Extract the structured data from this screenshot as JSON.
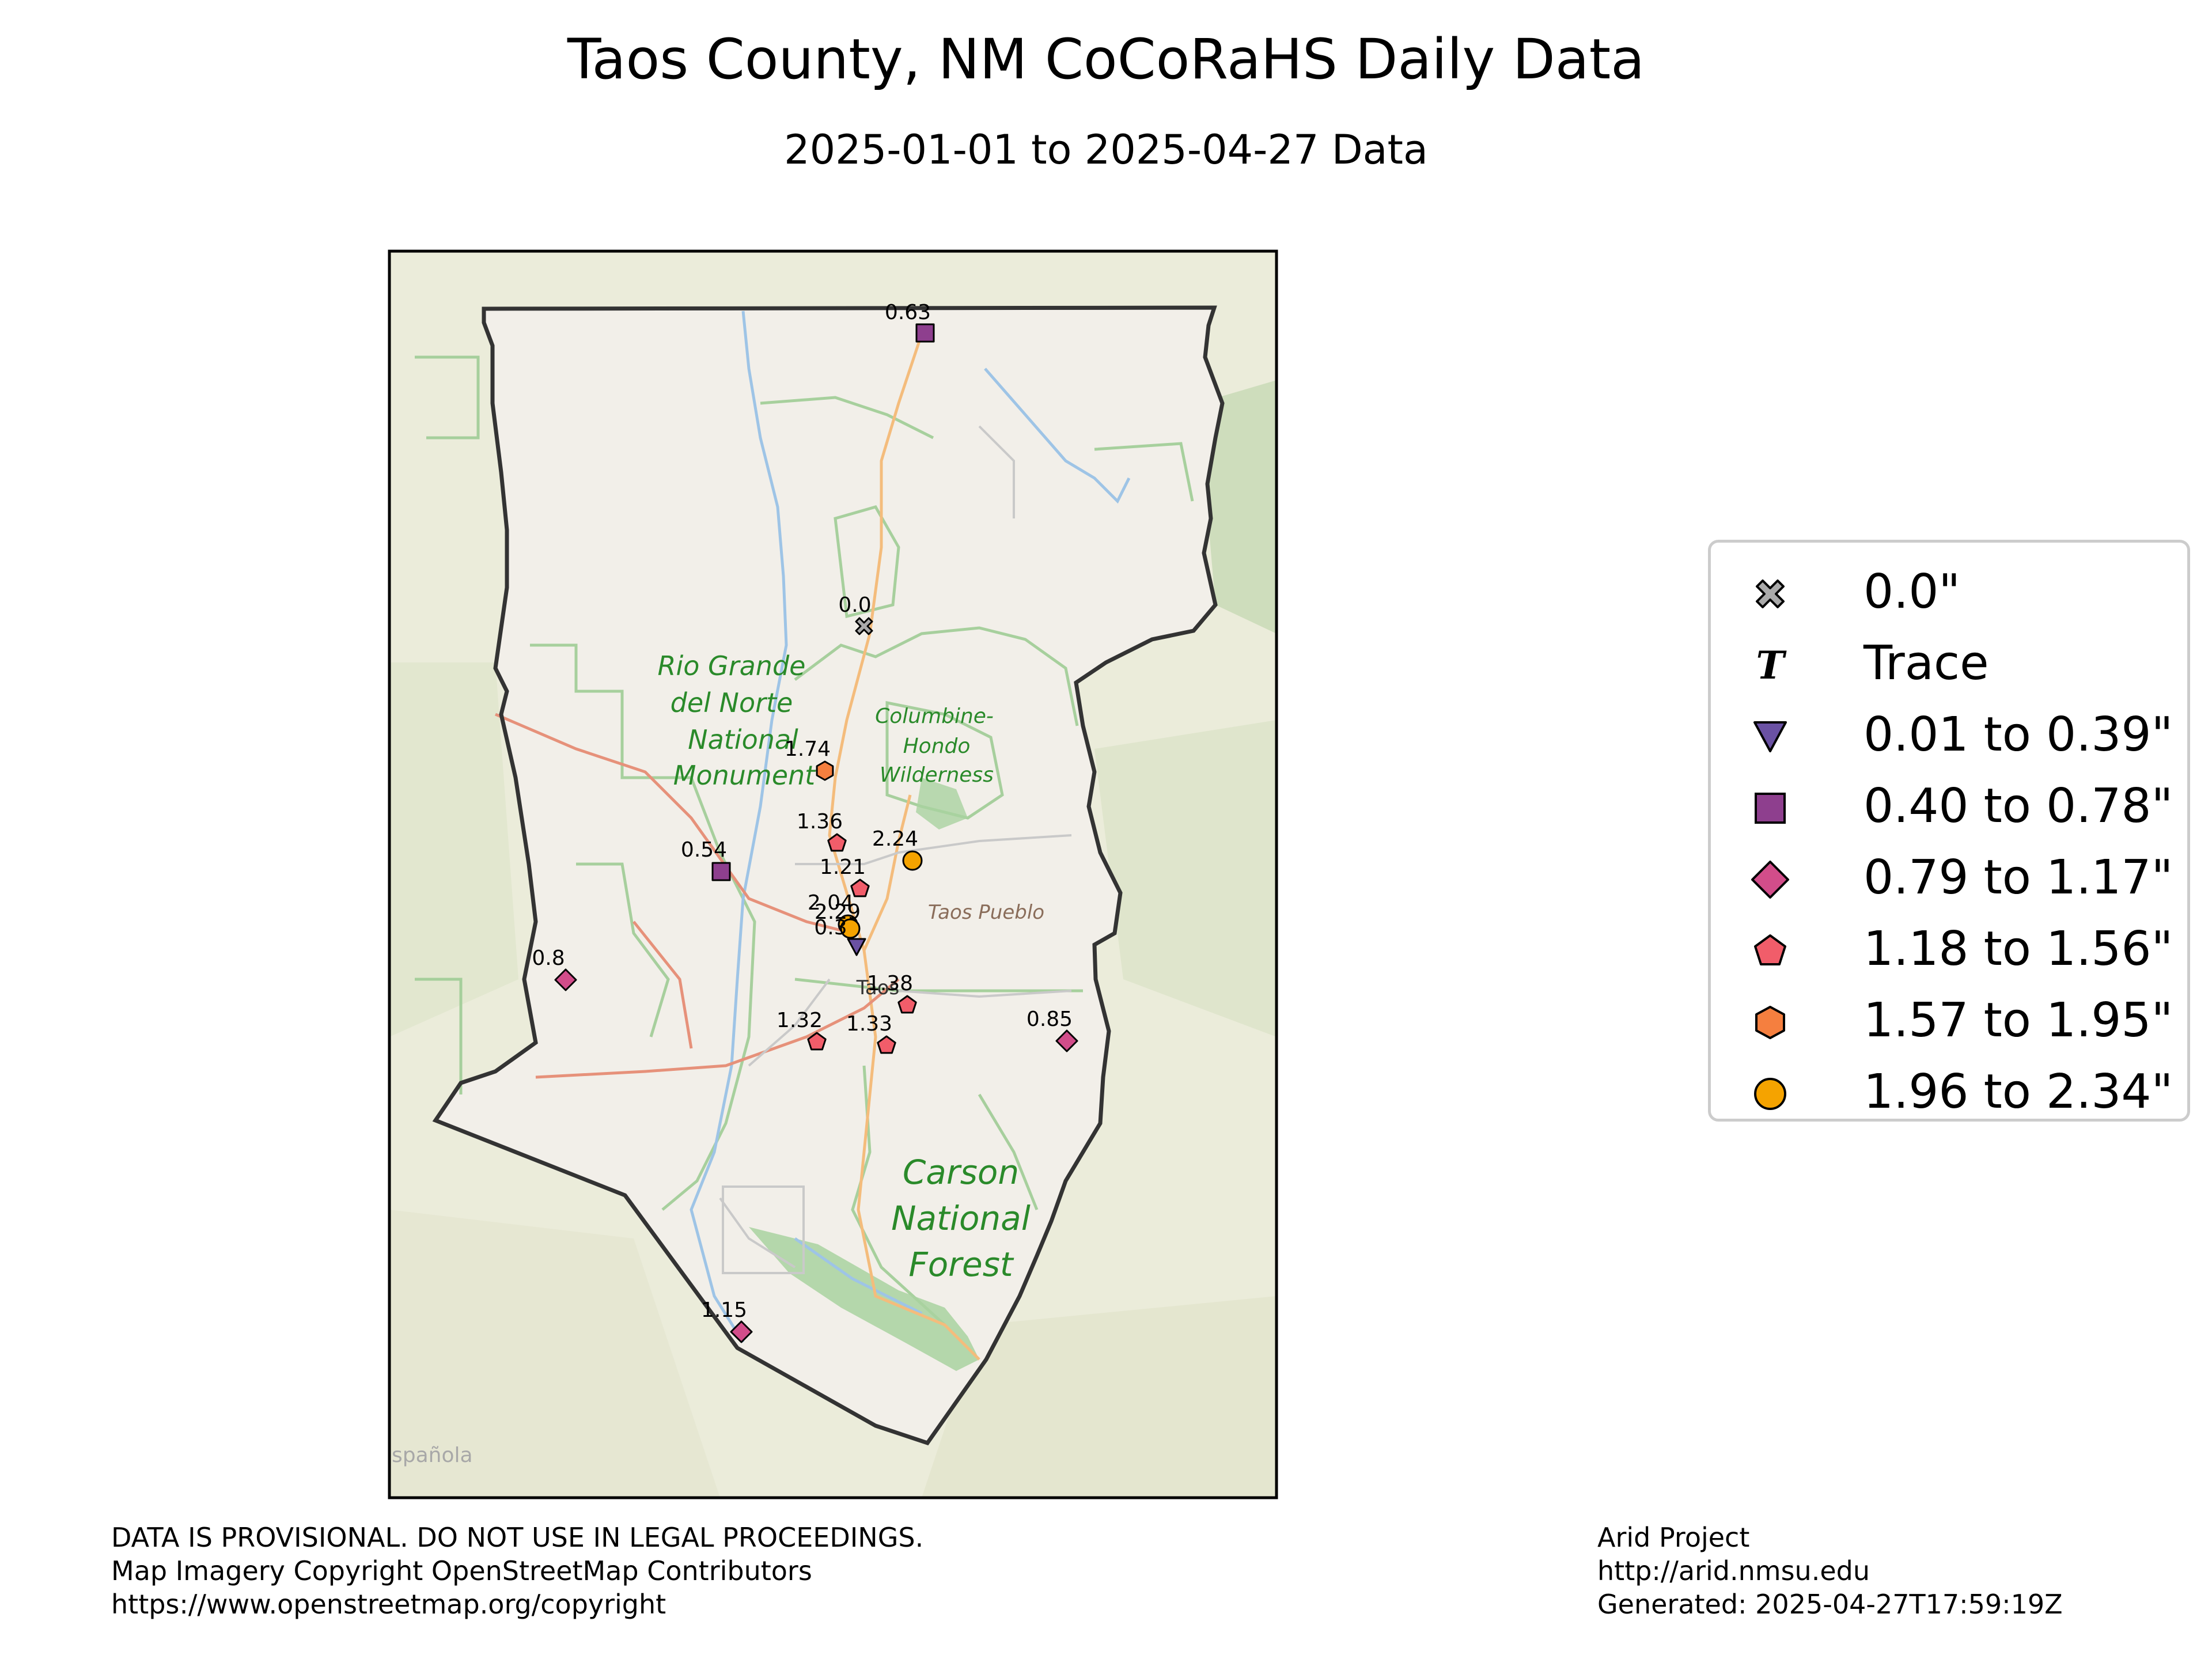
{
  "title": "Taos County, NM CoCoRaHS Daily Data",
  "subtitle": "2025-01-01 to 2025-04-27 Data",
  "map_labels": {
    "rio_grande_l1": "Rio Grande",
    "rio_grande_l2": "del Norte",
    "rio_grande_l3": "National",
    "rio_grande_l4": "Monument",
    "columbine_l1": "Columbine-",
    "columbine_l2": "Hondo",
    "columbine_l3": "Wilderness",
    "taos_pueblo": "Taos Pueblo",
    "taos": "Taos",
    "carson_l1": "Carson",
    "carson_l2": "National",
    "carson_l3": "Forest",
    "espanola": "spañola"
  },
  "stations": [
    {
      "label": "0.63",
      "value": 0.63,
      "category": "0.40 to 0.78\""
    },
    {
      "label": "0.0",
      "value": 0.0,
      "category": "0.0\""
    },
    {
      "label": "1.74",
      "value": 1.74,
      "category": "1.57 to 1.95\""
    },
    {
      "label": "1.36",
      "value": 1.36,
      "category": "1.18 to 1.56\""
    },
    {
      "label": "2.24",
      "value": 2.24,
      "category": "1.96 to 2.34\""
    },
    {
      "label": "0.54",
      "value": 0.54,
      "category": "0.40 to 0.78\""
    },
    {
      "label": "1.21",
      "value": 1.21,
      "category": "1.18 to 1.56\""
    },
    {
      "label": "2.04",
      "value": 2.04,
      "category": "1.96 to 2.34\""
    },
    {
      "label": "2.29",
      "value": 2.29,
      "category": "1.96 to 2.34\""
    },
    {
      "label": "0.3",
      "value": 0.3,
      "category": "0.01 to 0.39\""
    },
    {
      "label": "0.8",
      "value": 0.8,
      "category": "0.79 to 1.17\""
    },
    {
      "label": "1.38",
      "value": 1.38,
      "category": "1.18 to 1.56\""
    },
    {
      "label": "0.85",
      "value": 0.85,
      "category": "0.79 to 1.17\""
    },
    {
      "label": "1.32",
      "value": 1.32,
      "category": "1.18 to 1.56\""
    },
    {
      "label": "1.33",
      "value": 1.33,
      "category": "1.18 to 1.56\""
    },
    {
      "label": "1.15",
      "value": 1.15,
      "category": "0.79 to 1.17\""
    }
  ],
  "legend": {
    "items": [
      {
        "label": "0.0\"",
        "marker": "x-cross-icon",
        "color": "#aaaaaa"
      },
      {
        "label": "Trace",
        "marker": "t-letter-icon",
        "color": "#000000"
      },
      {
        "label": "0.01 to 0.39\"",
        "marker": "triangle-down-icon",
        "color": "#6a51a3"
      },
      {
        "label": "0.40 to 0.78\"",
        "marker": "square-icon",
        "color": "#8e3f8e"
      },
      {
        "label": "0.79 to 1.17\"",
        "marker": "diamond-icon",
        "color": "#d24d8a"
      },
      {
        "label": "1.18 to 1.56\"",
        "marker": "pentagon-icon",
        "color": "#f15d6a"
      },
      {
        "label": "1.57 to 1.95\"",
        "marker": "hexagon-icon",
        "color": "#f57f3f"
      },
      {
        "label": "1.96 to 2.34\"",
        "marker": "circle-icon",
        "color": "#f5a300"
      }
    ]
  },
  "footer": {
    "disclaimer": "DATA IS PROVISIONAL. DO NOT USE IN LEGAL PROCEEDINGS.",
    "imagery": "Map Imagery Copyright OpenStreetMap Contributors",
    "copyright_url": "https://www.openstreetmap.org/copyright",
    "project": "Arid Project",
    "project_url": "http://arid.nmsu.edu",
    "generated": "Generated: 2025-04-27T17:59:19Z"
  }
}
